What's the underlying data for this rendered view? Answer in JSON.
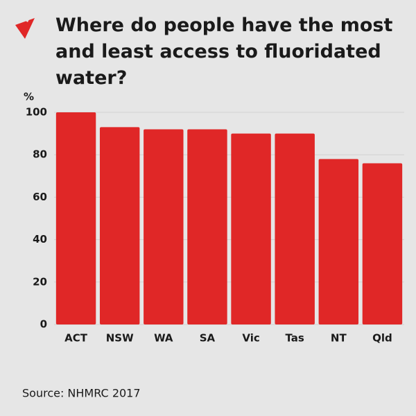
{
  "chart_data": {
    "type": "bar",
    "title": "Where do people have the most and least access to fluoridated water?",
    "y_label": "%",
    "categories": [
      "ACT",
      "NSW",
      "WA",
      "SA",
      "Vic",
      "Tas",
      "NT",
      "Qld"
    ],
    "values": [
      100,
      93,
      92,
      92,
      90,
      90,
      78,
      76
    ],
    "color": "#e02727",
    "ylim": [
      0,
      100
    ],
    "yticks": [
      0,
      20,
      40,
      60,
      80,
      100
    ],
    "grid": true,
    "source": "Source: NHMRC 2017"
  }
}
